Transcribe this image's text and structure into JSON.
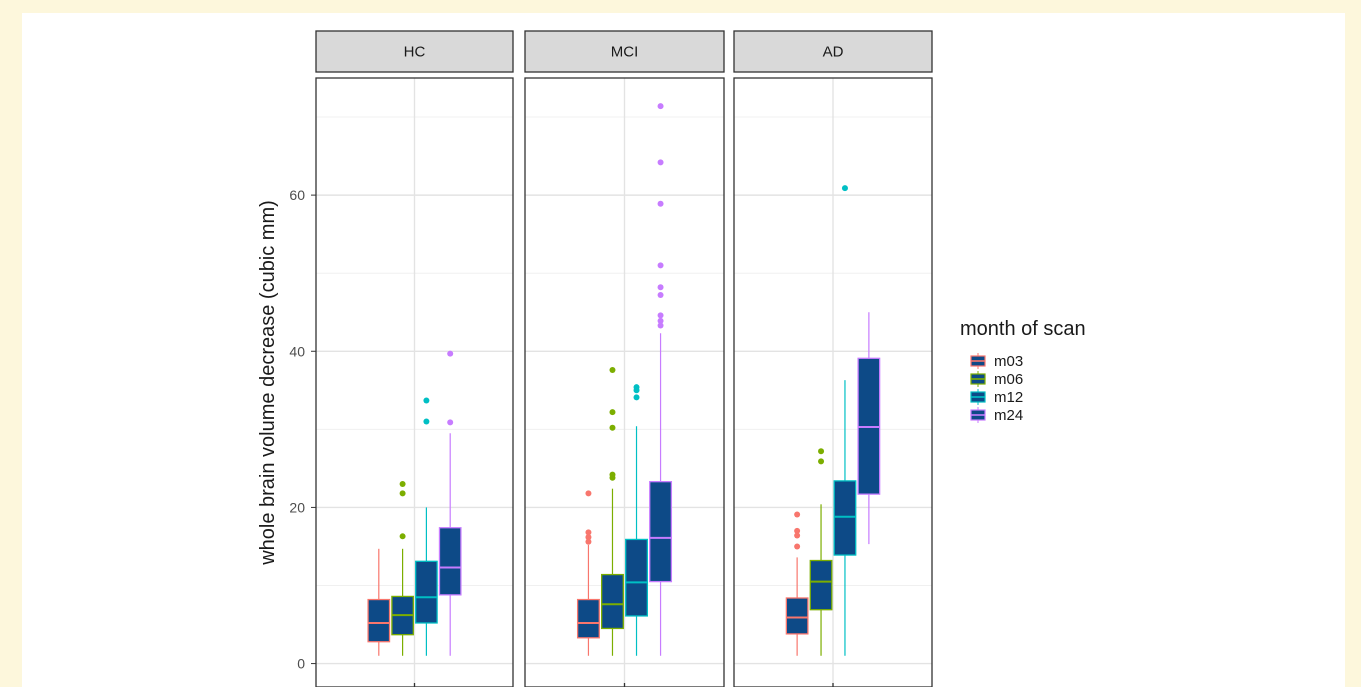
{
  "chart_data": {
    "type": "box",
    "ylabel": "whole brain volume decrease (cubic mm)",
    "xlabel": "",
    "ylim": [
      -3,
      75
    ],
    "yticks": [
      0,
      20,
      40,
      60
    ],
    "grid": true,
    "legend": {
      "title": "month of scan",
      "placement": "right",
      "entries": [
        {
          "name": "m03",
          "color": "#f8766d"
        },
        {
          "name": "m06",
          "color": "#7cae00"
        },
        {
          "name": "m12",
          "color": "#00bfc4"
        },
        {
          "name": "m24",
          "color": "#c77cff"
        }
      ]
    },
    "box_fill": "#0d4a87",
    "facets": [
      {
        "label": "HC",
        "boxes": [
          {
            "series": "m03",
            "whisker_low": 1.0,
            "q1": 2.8,
            "median": 5.2,
            "q3": 8.2,
            "whisker_high": 14.7,
            "outliers": []
          },
          {
            "series": "m06",
            "whisker_low": 1.0,
            "q1": 3.7,
            "median": 6.2,
            "q3": 8.6,
            "whisker_high": 14.7,
            "outliers": [
              16.3,
              21.8,
              23.0
            ]
          },
          {
            "series": "m12",
            "whisker_low": 1.0,
            "q1": 5.2,
            "median": 8.5,
            "q3": 13.1,
            "whisker_high": 20.0,
            "outliers": [
              31.0,
              33.7
            ]
          },
          {
            "series": "m24",
            "whisker_low": 1.0,
            "q1": 8.8,
            "median": 12.3,
            "q3": 17.4,
            "whisker_high": 29.5,
            "outliers": [
              30.9,
              39.7
            ]
          }
        ]
      },
      {
        "label": "MCI",
        "boxes": [
          {
            "series": "m03",
            "whisker_low": 1.0,
            "q1": 3.3,
            "median": 5.2,
            "q3": 8.2,
            "whisker_high": 15.2,
            "outliers": [
              15.6,
              16.2,
              16.8,
              21.8
            ]
          },
          {
            "series": "m06",
            "whisker_low": 1.0,
            "q1": 4.5,
            "median": 7.6,
            "q3": 11.4,
            "whisker_high": 22.4,
            "outliers": [
              23.8,
              24.2,
              30.2,
              32.2,
              37.6
            ]
          },
          {
            "series": "m12",
            "whisker_low": 1.0,
            "q1": 6.1,
            "median": 10.4,
            "q3": 15.9,
            "whisker_high": 30.4,
            "outliers": [
              34.1,
              35.0,
              35.4
            ]
          },
          {
            "series": "m24",
            "whisker_low": 1.0,
            "q1": 10.5,
            "median": 16.1,
            "q3": 23.3,
            "whisker_high": 42.3,
            "outliers": [
              43.3,
              43.9,
              44.6,
              47.2,
              48.2,
              51.0,
              58.9,
              64.2,
              71.4
            ]
          }
        ]
      },
      {
        "label": "AD",
        "boxes": [
          {
            "series": "m03",
            "whisker_low": 1.0,
            "q1": 3.8,
            "median": 5.9,
            "q3": 8.4,
            "whisker_high": 13.6,
            "outliers": [
              15.0,
              16.4,
              17.0,
              19.1
            ]
          },
          {
            "series": "m06",
            "whisker_low": 1.0,
            "q1": 6.9,
            "median": 10.5,
            "q3": 13.2,
            "whisker_high": 20.4,
            "outliers": [
              25.9,
              27.2
            ]
          },
          {
            "series": "m12",
            "whisker_low": 1.0,
            "q1": 13.9,
            "median": 18.8,
            "q3": 23.4,
            "whisker_high": 36.3,
            "outliers": [
              60.9
            ]
          },
          {
            "series": "m24",
            "whisker_low": 15.3,
            "q1": 21.7,
            "median": 30.3,
            "q3": 39.1,
            "whisker_high": 45.0,
            "outliers": []
          }
        ]
      }
    ]
  }
}
